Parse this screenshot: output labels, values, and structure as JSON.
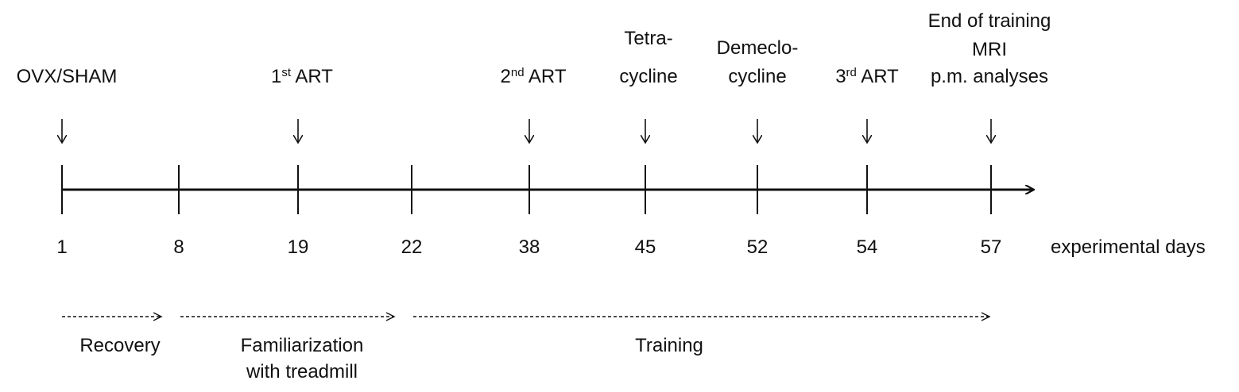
{
  "events": [
    {
      "lines": [
        [
          {
            "t": "OVX/SHAM"
          }
        ]
      ]
    },
    {
      "lines": [
        [
          {
            "t": "1"
          },
          {
            "t": "st",
            "sup": true
          },
          {
            "t": " ART"
          }
        ]
      ]
    },
    {
      "lines": [
        [
          {
            "t": "2"
          },
          {
            "t": "nd",
            "sup": true
          },
          {
            "t": " ART"
          }
        ]
      ]
    },
    {
      "lines": [
        [
          {
            "t": "Tetra-"
          }
        ],
        [
          {
            "t": "cycline"
          }
        ]
      ]
    },
    {
      "lines": [
        [
          {
            "t": "Demeclo-"
          }
        ],
        [
          {
            "t": "cycline"
          }
        ]
      ]
    },
    {
      "lines": [
        [
          {
            "t": "3"
          },
          {
            "t": "rd",
            "sup": true
          },
          {
            "t": "  ART"
          }
        ]
      ]
    },
    {
      "lines": [
        [
          {
            "t": "End of training"
          }
        ],
        [
          {
            "t": "MRI"
          }
        ],
        [
          {
            "t": "p.m. analyses"
          }
        ]
      ]
    }
  ],
  "event_days": [
    "1",
    "19",
    "38",
    "45",
    "52",
    "54",
    "57"
  ],
  "tick_days": [
    "1",
    "8",
    "19",
    "22",
    "38",
    "45",
    "52",
    "54",
    "57"
  ],
  "axis_label": "experimental days",
  "phases": [
    {
      "from_day": "1",
      "to_day": "8",
      "lines": [
        "Recovery"
      ]
    },
    {
      "from_day": "8",
      "to_day": "22",
      "lines": [
        "Familiarization",
        "with treadmill"
      ]
    },
    {
      "from_day": "22",
      "to_day": "57",
      "lines": [
        "Training"
      ]
    }
  ]
}
